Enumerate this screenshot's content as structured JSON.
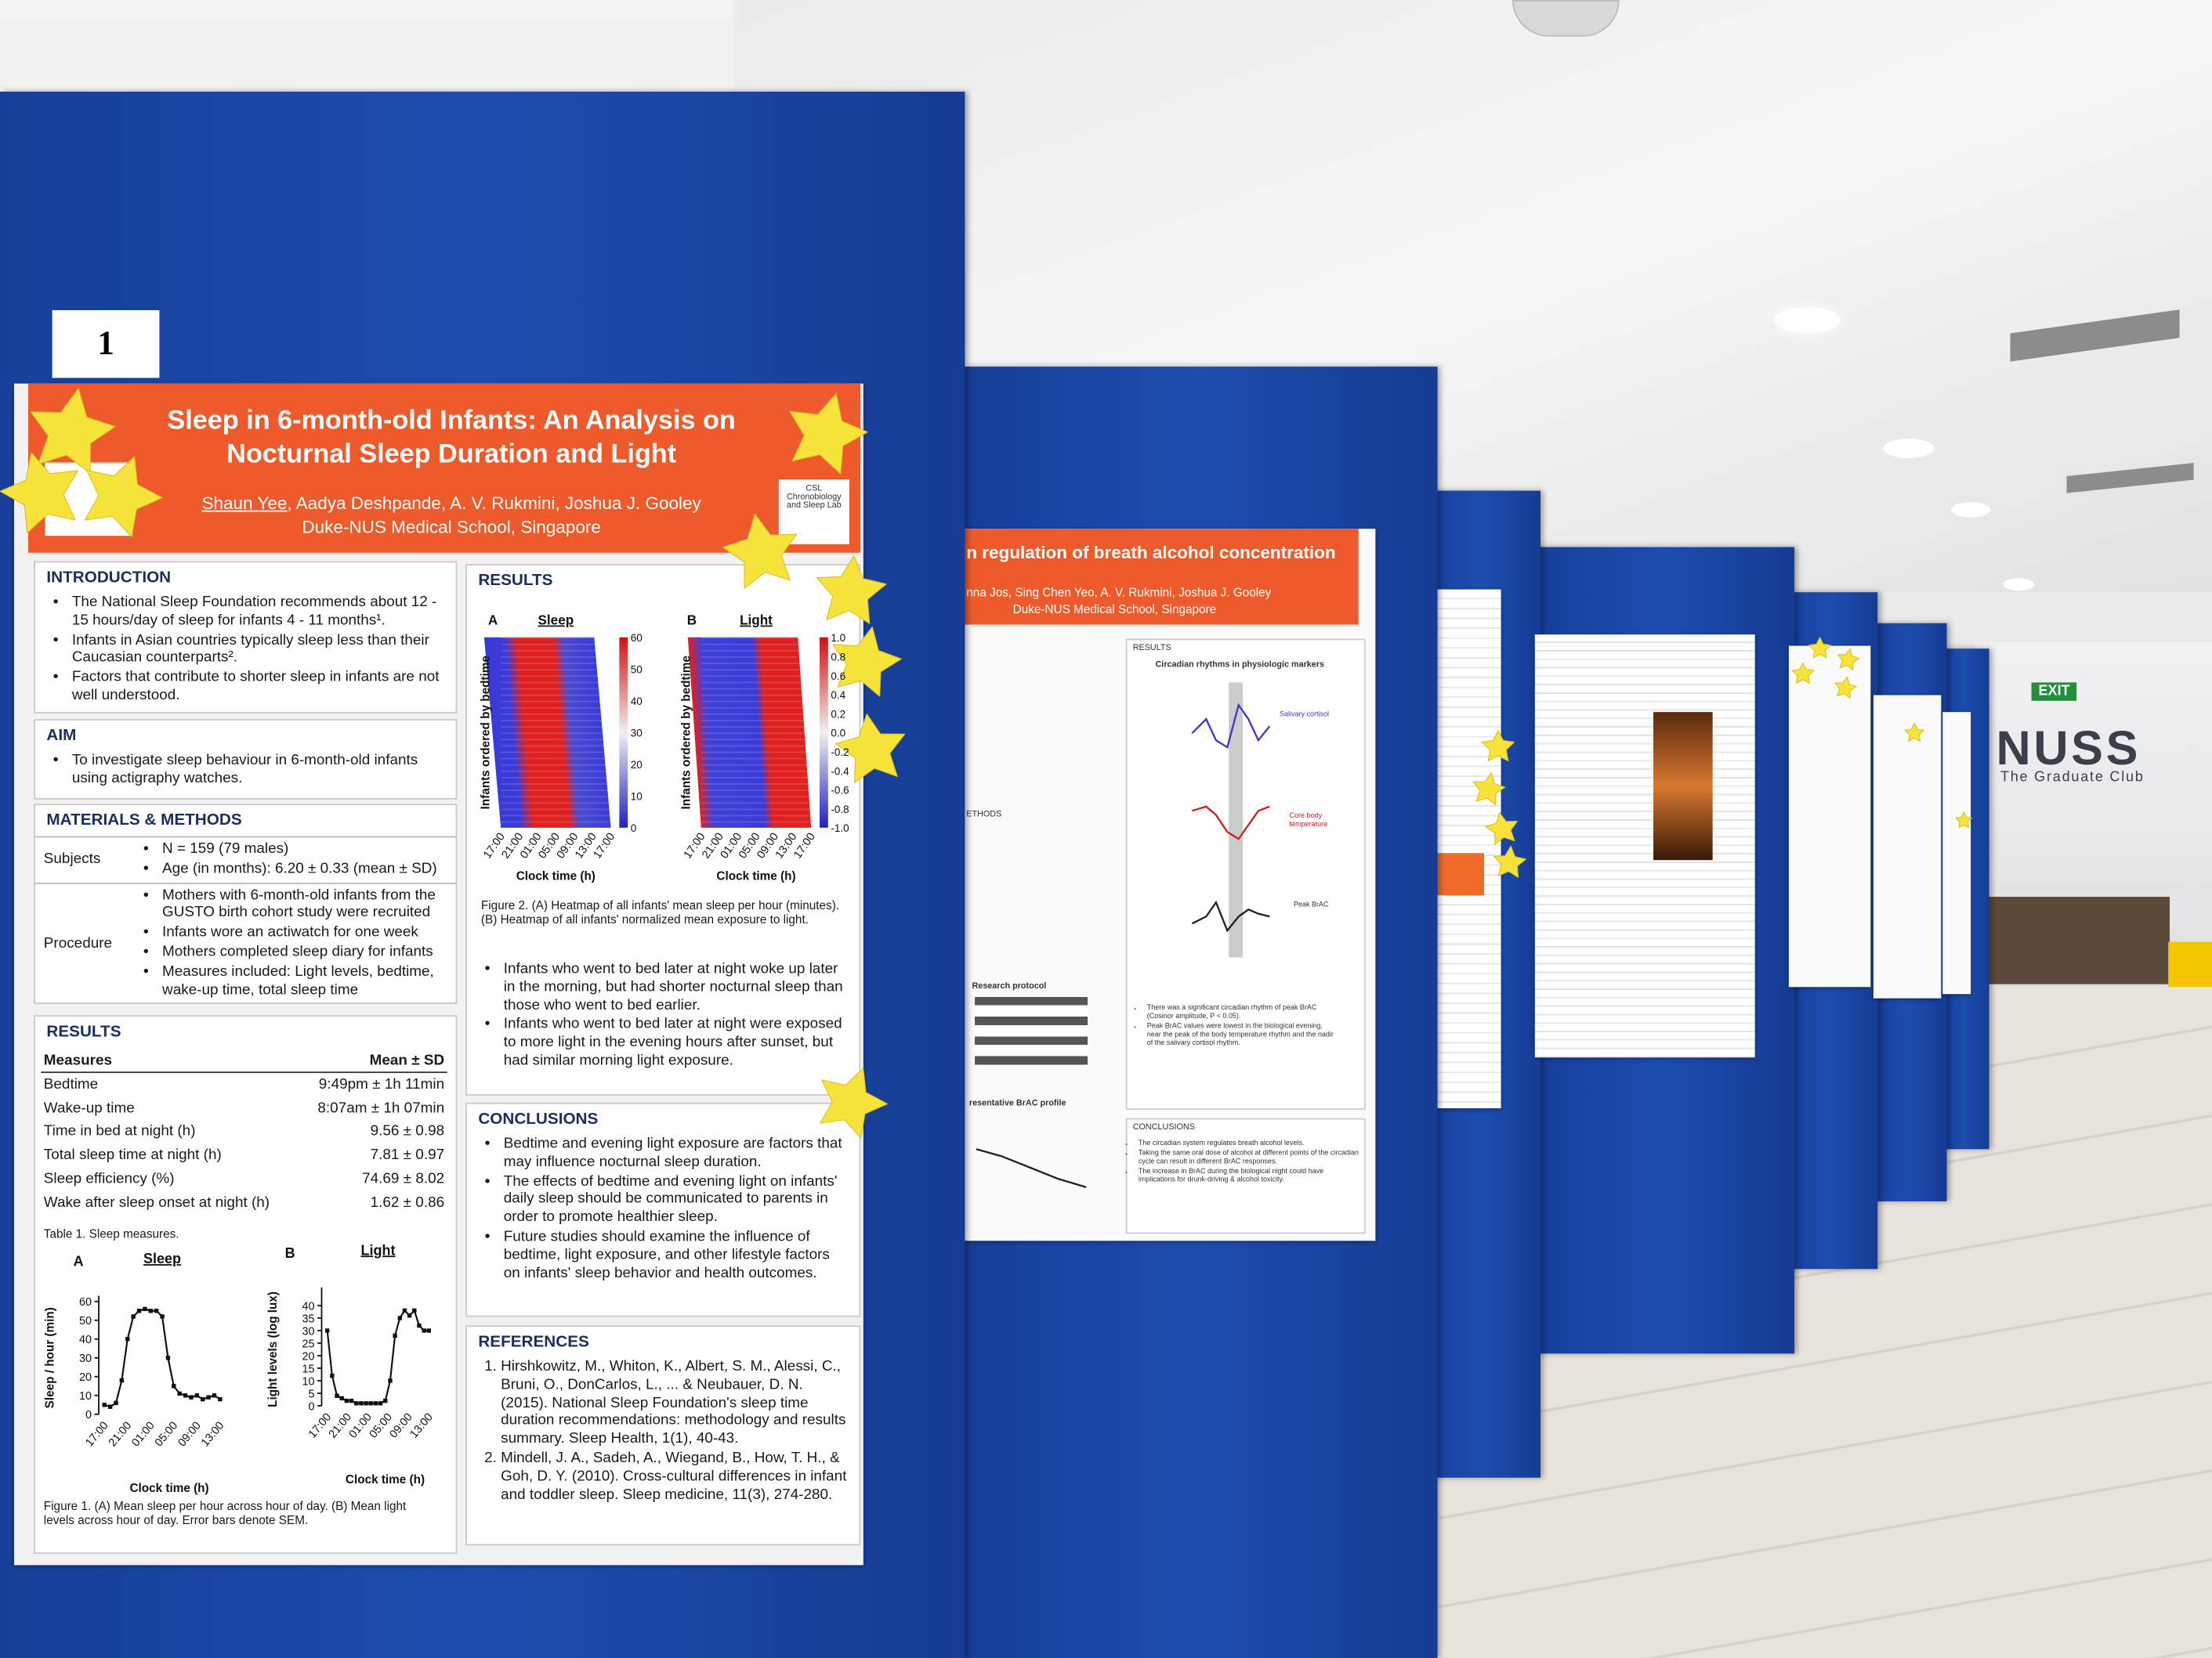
{
  "scene": {
    "exit_sign": "EXIT",
    "club_name": "NUSS",
    "club_subtitle": "The Graduate Club",
    "board_number": "1"
  },
  "poster1": {
    "title": "Sleep in 6-month-old Infants: An Analysis on Nocturnal Sleep Duration and Light",
    "lead_author": "Shaun Yee",
    "other_authors": ", Aadya Deshpande, A. V. Rukmini, Joshua J. Gooley",
    "affiliation": "Duke-NUS Medical School, Singapore",
    "lab_logo": "CSL Chronobiology and Sleep Lab",
    "introduction": {
      "heading": "INTRODUCTION",
      "bullets": [
        "The National Sleep Foundation recommends about 12 - 15 hours/day of sleep for infants 4 - 11 months¹.",
        "Infants in Asian countries typically sleep less than their Caucasian counterparts².",
        "Factors that contribute to shorter sleep in infants are not well understood."
      ]
    },
    "aim": {
      "heading": "AIM",
      "bullets": [
        "To investigate sleep behaviour in 6-month-old infants using actigraphy watches."
      ]
    },
    "methods": {
      "heading": "MATERIALS & METHODS",
      "rows": [
        {
          "label": "Subjects",
          "items": [
            "N = 159 (79 males)",
            "Age (in months): 6.20 ± 0.33 (mean ± SD)"
          ]
        },
        {
          "label": "Procedure",
          "items": [
            "Mothers with 6-month-old infants from the GUSTO birth cohort study were recruited",
            "Infants wore an actiwatch for one week",
            "Mothers completed sleep diary for infants",
            "Measures included: Light levels, bedtime, wake-up time, total sleep time"
          ]
        }
      ]
    },
    "results_table": {
      "heading": "RESULTS",
      "columns": [
        "Measures",
        "Mean ± SD"
      ],
      "rows": [
        [
          "Bedtime",
          "9:49pm ± 1h 11min"
        ],
        [
          "Wake-up time",
          "8:07am ± 1h 07min"
        ],
        [
          "Time in bed at night (h)",
          "9.56 ± 0.98"
        ],
        [
          "Total sleep time at night (h)",
          "7.81 ± 0.97"
        ],
        [
          "Sleep efficiency (%)",
          "74.69 ± 8.02"
        ],
        [
          "Wake after sleep onset at night (h)",
          "1.62 ± 0.86"
        ]
      ],
      "caption": "Table 1. Sleep measures."
    },
    "figure1": {
      "xlabel": "Clock time (h)",
      "xticks": [
        "17:00",
        "21:00",
        "01:00",
        "05:00",
        "09:00",
        "13:00"
      ],
      "caption": "Figure 1. (A) Mean sleep per hour across hour of day. (B) Mean light levels across hour of day. Error bars denote SEM.",
      "panels": [
        {
          "letter": "A",
          "title": "Sleep",
          "ylabel": "Sleep / hour (min)",
          "ylim": [
            0,
            60
          ],
          "yticks": [
            0,
            10,
            20,
            30,
            40,
            50,
            60
          ],
          "values": [
            5,
            4,
            6,
            18,
            40,
            52,
            55,
            56,
            55,
            55,
            52,
            30,
            15,
            11,
            10,
            9,
            10,
            8,
            9,
            10,
            8
          ]
        },
        {
          "letter": "B",
          "title": "Light",
          "ylabel": "Light levels (log lux)",
          "ylim": [
            0,
            45
          ],
          "yticks": [
            0,
            5,
            10,
            15,
            20,
            25,
            30,
            35,
            40
          ],
          "values": [
            30,
            12,
            4,
            3,
            2,
            2,
            1,
            1,
            1,
            1,
            1,
            1,
            2,
            10,
            28,
            35,
            38,
            36,
            38,
            32,
            30,
            30
          ]
        }
      ]
    },
    "results_right": {
      "heading": "RESULTS",
      "figure2": {
        "ylabel": "Infants ordered by bedtime",
        "xlabel": "Clock time (h)",
        "xticks": [
          "17:00",
          "21:00",
          "01:00",
          "05:00",
          "09:00",
          "13:00",
          "17:00"
        ],
        "panels": [
          {
            "letter": "A",
            "title": "Sleep",
            "colorbar_ticks": [
              "60",
              "50",
              "40",
              "30",
              "20",
              "10",
              "0"
            ]
          },
          {
            "letter": "B",
            "title": "Light",
            "colorbar_ticks": [
              "1.0",
              "0.8",
              "0.6",
              "0.4",
              "0.2",
              "0.0",
              "-0.2",
              "-0.4",
              "-0.6",
              "-0.8",
              "-1.0"
            ]
          }
        ],
        "caption": "Figure 2. (A) Heatmap of all infants' mean sleep per hour (minutes). (B) Heatmap of all infants' normalized mean exposure to light."
      },
      "bullets": [
        "Infants who went to bed later at night woke up later in the morning, but had shorter nocturnal sleep than those who went to bed earlier.",
        "Infants who went to bed later at night were exposed to more light in the evening hours after sunset, but had similar morning light exposure."
      ]
    },
    "conclusions": {
      "heading": "CONCLUSIONS",
      "bullets": [
        "Bedtime and evening light exposure are factors that may influence nocturnal sleep duration.",
        "The effects of bedtime and evening light on infants' daily sleep should be communicated to parents in order to promote healthier sleep.",
        "Future studies should examine the influence of bedtime, light exposure, and other lifestyle factors on infants' sleep behavior and health outcomes."
      ]
    },
    "references": {
      "heading": "REFERENCES",
      "items": [
        "Hirshkowitz, M., Whiton, K., Albert, S. M., Alessi, C., Bruni, O., DonCarlos, L., ... & Neubauer, D. N. (2015). National Sleep Foundation's sleep time duration recommendations: methodology and results summary. Sleep Health, 1(1), 40-43.",
        "Mindell, J. A., Sadeh, A., Wiegand, B., How, T. H., & Goh, D. Y. (2010). Cross-cultural differences in infant and toddler sleep. Sleep medicine, 11(3), 274-280."
      ]
    }
  },
  "poster2": {
    "title": "n regulation of breath alcohol concentration",
    "authors": "nna Jos, Sing Chen Yeo, A. V. Rukmini, Joshua J. Gooley",
    "affiliation": "Duke-NUS Medical School, Singapore",
    "results_heading": "RESULTS",
    "figure_title": "Circadian rhythms in physiologic markers",
    "marker_labels": [
      "Salivary cortisol",
      "Core body temperature",
      "Peak BrAC"
    ],
    "methods_heading": "ETHODS",
    "protocol_heading": "Research protocol",
    "profile_heading": "resentative BrAC profile",
    "results_bullets": [
      "There was a significant circadian rhythm of peak BrAC (Cosinor amplitude, P < 0.05).",
      "Peak BrAC values were lowest in the biological evening, near the peak of the body temperature rhythm and the nadir of the salivary cortisol rhythm."
    ],
    "conclusions_heading": "CONCLUSIONS",
    "conclusions": [
      "The circadian system regulates breath alcohol levels.",
      "Taking the same oral dose of alcohol at different points of the circadian cycle can result in different BrAC responses.",
      "The increase in BrAC during the biological night could have implications for drunk-driving & alcohol toxicity."
    ]
  }
}
